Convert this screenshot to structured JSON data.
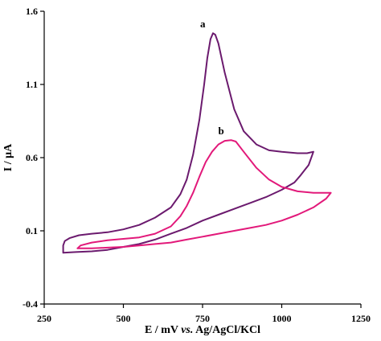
{
  "chart_data": {
    "type": "line",
    "title": "",
    "xlabel_parts": [
      "E / mV ",
      "vs.",
      " Ag/AgCl/KCl"
    ],
    "ylabel": "I / μA",
    "xlim": [
      250,
      1250
    ],
    "ylim": [
      -0.4,
      1.6
    ],
    "x_ticks": [
      250,
      500,
      750,
      1000,
      1250
    ],
    "y_ticks": [
      -0.4,
      0.1,
      0.6,
      1.1,
      1.6
    ],
    "x_tick_labels": [
      "250",
      "500",
      "750",
      "1000",
      "1250"
    ],
    "y_tick_labels": [
      "-0.4",
      "0.1",
      "0.6",
      "1.1",
      "1.6"
    ],
    "grid": false,
    "series": [
      {
        "name": "a",
        "color": "#6b1a6e",
        "label_point": [
          783,
          1.5
        ],
        "points": [
          [
            310,
            -0.05
          ],
          [
            310,
            0.0
          ],
          [
            315,
            0.03
          ],
          [
            330,
            0.05
          ],
          [
            360,
            0.07
          ],
          [
            400,
            0.08
          ],
          [
            450,
            0.09
          ],
          [
            500,
            0.11
          ],
          [
            550,
            0.14
          ],
          [
            600,
            0.19
          ],
          [
            650,
            0.26
          ],
          [
            680,
            0.35
          ],
          [
            700,
            0.45
          ],
          [
            720,
            0.62
          ],
          [
            740,
            0.86
          ],
          [
            755,
            1.1
          ],
          [
            765,
            1.28
          ],
          [
            775,
            1.41
          ],
          [
            783,
            1.45
          ],
          [
            790,
            1.44
          ],
          [
            800,
            1.38
          ],
          [
            820,
            1.18
          ],
          [
            850,
            0.93
          ],
          [
            880,
            0.78
          ],
          [
            920,
            0.69
          ],
          [
            960,
            0.65
          ],
          [
            1000,
            0.64
          ],
          [
            1050,
            0.63
          ],
          [
            1080,
            0.63
          ],
          [
            1100,
            0.64
          ],
          [
            1085,
            0.55
          ],
          [
            1060,
            0.48
          ],
          [
            1040,
            0.43
          ],
          [
            1000,
            0.38
          ],
          [
            950,
            0.33
          ],
          [
            900,
            0.29
          ],
          [
            850,
            0.25
          ],
          [
            800,
            0.21
          ],
          [
            750,
            0.17
          ],
          [
            700,
            0.12
          ],
          [
            650,
            0.08
          ],
          [
            600,
            0.04
          ],
          [
            550,
            0.01
          ],
          [
            500,
            -0.01
          ],
          [
            450,
            -0.03
          ],
          [
            400,
            -0.04
          ],
          [
            350,
            -0.045
          ],
          [
            310,
            -0.05
          ]
        ]
      },
      {
        "name": "b",
        "color": "#e2197a",
        "label_point": [
          840,
          0.77
        ],
        "points": [
          [
            355,
            -0.02
          ],
          [
            365,
            0.0
          ],
          [
            400,
            0.02
          ],
          [
            450,
            0.035
          ],
          [
            500,
            0.045
          ],
          [
            550,
            0.055
          ],
          [
            600,
            0.08
          ],
          [
            650,
            0.13
          ],
          [
            680,
            0.2
          ],
          [
            700,
            0.27
          ],
          [
            720,
            0.36
          ],
          [
            740,
            0.47
          ],
          [
            760,
            0.57
          ],
          [
            780,
            0.64
          ],
          [
            800,
            0.69
          ],
          [
            820,
            0.715
          ],
          [
            840,
            0.72
          ],
          [
            855,
            0.71
          ],
          [
            880,
            0.64
          ],
          [
            920,
            0.53
          ],
          [
            960,
            0.45
          ],
          [
            1000,
            0.4
          ],
          [
            1050,
            0.37
          ],
          [
            1100,
            0.36
          ],
          [
            1130,
            0.36
          ],
          [
            1155,
            0.36
          ],
          [
            1140,
            0.32
          ],
          [
            1100,
            0.26
          ],
          [
            1050,
            0.21
          ],
          [
            1000,
            0.17
          ],
          [
            950,
            0.14
          ],
          [
            900,
            0.12
          ],
          [
            850,
            0.1
          ],
          [
            800,
            0.08
          ],
          [
            750,
            0.06
          ],
          [
            700,
            0.04
          ],
          [
            650,
            0.02
          ],
          [
            600,
            0.01
          ],
          [
            550,
            0.0
          ],
          [
            500,
            -0.01
          ],
          [
            450,
            -0.015
          ],
          [
            400,
            -0.02
          ],
          [
            355,
            -0.02
          ]
        ]
      }
    ]
  }
}
